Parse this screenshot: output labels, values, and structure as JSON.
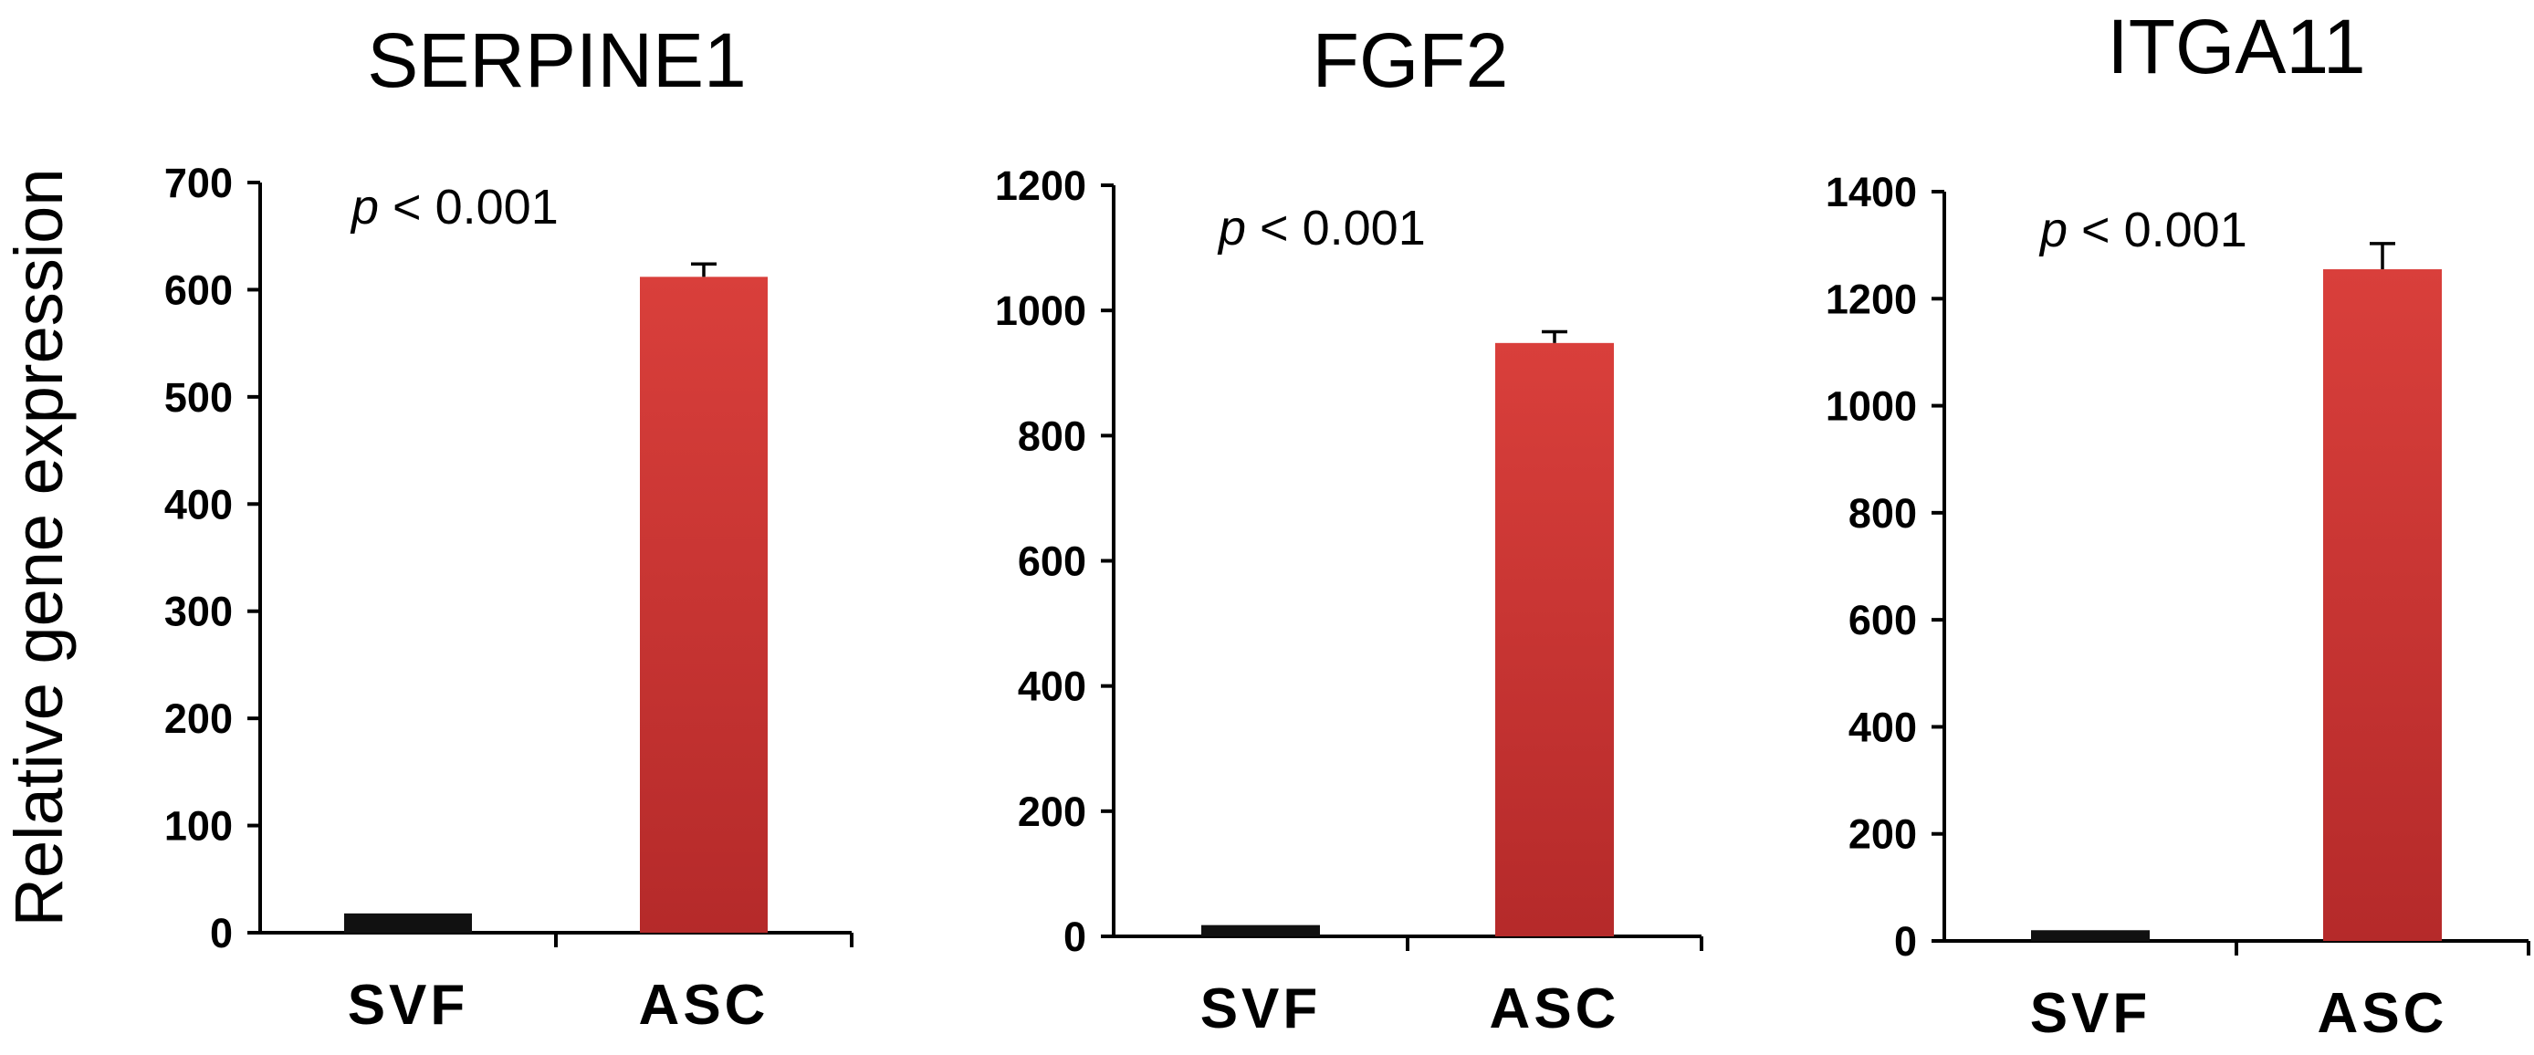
{
  "ylabel": "Relative gene expression",
  "p_prefix": "p",
  "p_text": " < 0.001",
  "colors": {
    "svf": "#111111",
    "asc_light": "#d93f3b",
    "asc_dark": "#b52a2a"
  },
  "chart_data": [
    {
      "type": "bar",
      "title": "SERPINE1",
      "categories": [
        "SVF",
        "ASC"
      ],
      "values": [
        18,
        612
      ],
      "errors": [
        0,
        12
      ],
      "ylim": [
        0,
        700
      ],
      "yticks": [
        "0",
        "100",
        "200",
        "300",
        "400",
        "500",
        "600",
        "700"
      ],
      "annotation": "p < 0.001",
      "xlabel": "",
      "ylabel": "Relative gene expression"
    },
    {
      "type": "bar",
      "title": "FGF2",
      "categories": [
        "SVF",
        "ASC"
      ],
      "values": [
        18,
        948
      ],
      "errors": [
        0,
        18
      ],
      "ylim": [
        0,
        1200
      ],
      "yticks": [
        "0",
        "200",
        "400",
        "600",
        "800",
        "1000",
        "1200"
      ],
      "annotation": "p < 0.001",
      "xlabel": "",
      "ylabel": "Relative gene expression"
    },
    {
      "type": "bar",
      "title": "ITGA11",
      "categories": [
        "SVF",
        "ASC"
      ],
      "values": [
        20,
        1255
      ],
      "errors": [
        0,
        48
      ],
      "ylim": [
        0,
        1400
      ],
      "yticks": [
        "0",
        "200",
        "400",
        "600",
        "800",
        "1000",
        "1200",
        "1400"
      ],
      "annotation": "p < 0.001",
      "xlabel": "",
      "ylabel": "Relative gene expression"
    }
  ]
}
